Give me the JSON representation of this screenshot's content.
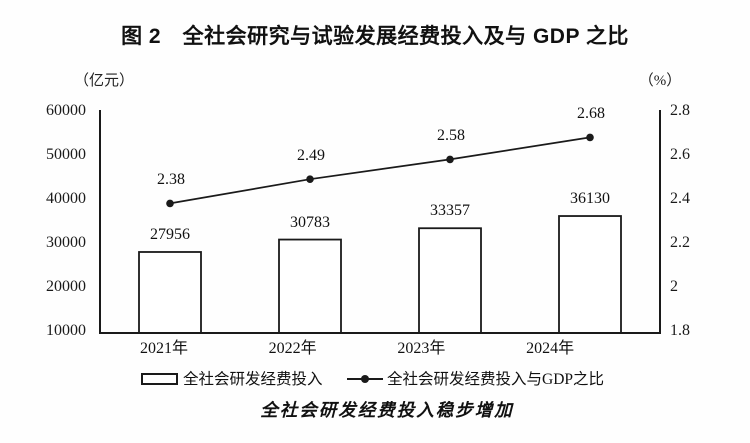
{
  "figure_title": "图 2　全社会研究与试验发展经费投入及与 GDP 之比",
  "caption": "全社会研发经费投入稳步增加",
  "colors": {
    "ink": "#1a1a1a"
  },
  "chart_data": {
    "type": "bar",
    "subtype": "bar+line combo, dual axis",
    "categories": [
      "2021年",
      "2022年",
      "2023年",
      "2024年"
    ],
    "series": [
      {
        "name": "全社会研发经费投入",
        "type": "bar",
        "axis": "left",
        "values": [
          27956,
          30783,
          33357,
          36130
        ],
        "value_labels": [
          "27956",
          "30783",
          "33357",
          "36130"
        ]
      },
      {
        "name": "全社会研发经费投入与GDP之比",
        "type": "line",
        "axis": "right",
        "values": [
          2.38,
          2.49,
          2.58,
          2.68
        ],
        "value_labels": [
          "2.38",
          "2.49",
          "2.58",
          "2.68"
        ]
      }
    ],
    "title": "图 2　全社会研究与试验发展经费投入及与 GDP 之比",
    "left_axis": {
      "unit": "（亿元）",
      "ticks": [
        60000,
        50000,
        40000,
        30000,
        20000,
        10000
      ],
      "min": 10000,
      "max": 60000
    },
    "right_axis": {
      "unit": "（%）",
      "ticks": [
        "2.8",
        "2.6",
        "2.4",
        "2.2",
        "2",
        "1.8"
      ],
      "min": 1.8,
      "max": 2.8
    },
    "grid": "off",
    "legend_position": "bottom",
    "caption": "全社会研发经费投入稳步增加"
  }
}
